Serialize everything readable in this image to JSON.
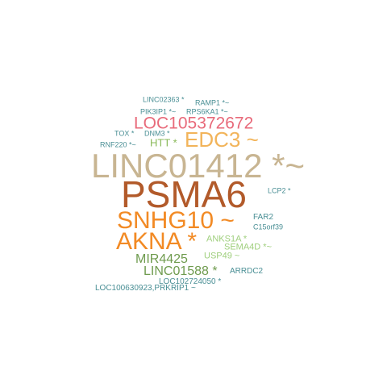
{
  "colors": {
    "teal": "#4a8f95",
    "pink": "#e86a7a",
    "light_orange": "#f2b45a",
    "green": "#88b958",
    "tan": "#c8b592",
    "rust": "#b25a2a",
    "orange": "#f28a24",
    "olive": "#6f9b4e",
    "light_green": "#9fcf7d"
  },
  "words": [
    {
      "text": "LINC02363 *",
      "color": "#4a8f95"
    },
    {
      "text": "RAMP1 *~",
      "color": "#4a8f95"
    },
    {
      "text": "PIK3IP1 *~",
      "color": "#4a8f95"
    },
    {
      "text": "RPS6KA1 *~",
      "color": "#4a8f95"
    },
    {
      "text": "LOC105372672",
      "color": "#e86a7a"
    },
    {
      "text": "TOX *",
      "color": "#4a8f95"
    },
    {
      "text": "DNM3 *",
      "color": "#4a8f95"
    },
    {
      "text": "EDC3 ~",
      "color": "#f2b45a"
    },
    {
      "text": "HTT *",
      "color": "#88b958"
    },
    {
      "text": "RNF220 *~",
      "color": "#4a8f95"
    },
    {
      "text": "LINC01412 *~",
      "color": "#c8b592"
    },
    {
      "text": "PSMA6",
      "color": "#b25a2a"
    },
    {
      "text": "LCP2 *",
      "color": "#4a8f95"
    },
    {
      "text": "SNHG10 ~",
      "color": "#f28a24"
    },
    {
      "text": "FAR2",
      "color": "#4a8f95"
    },
    {
      "text": "C15orf39",
      "color": "#4a8f95"
    },
    {
      "text": "AKNA *",
      "color": "#f28a24"
    },
    {
      "text": "ANKS1A *",
      "color": "#9fcf7d"
    },
    {
      "text": "SEMA4D *~",
      "color": "#9fcf7d"
    },
    {
      "text": "MIR4425",
      "color": "#6f9b4e"
    },
    {
      "text": "USP49 ~",
      "color": "#9fcf7d"
    },
    {
      "text": "LINC01588 *",
      "color": "#6f9b4e"
    },
    {
      "text": "ARRDC2",
      "color": "#4a8f95"
    },
    {
      "text": "LOC102724050 *",
      "color": "#4a8f95"
    },
    {
      "text": "LOC100630923,PRKRIP1 ~",
      "color": "#4a8f95"
    }
  ]
}
